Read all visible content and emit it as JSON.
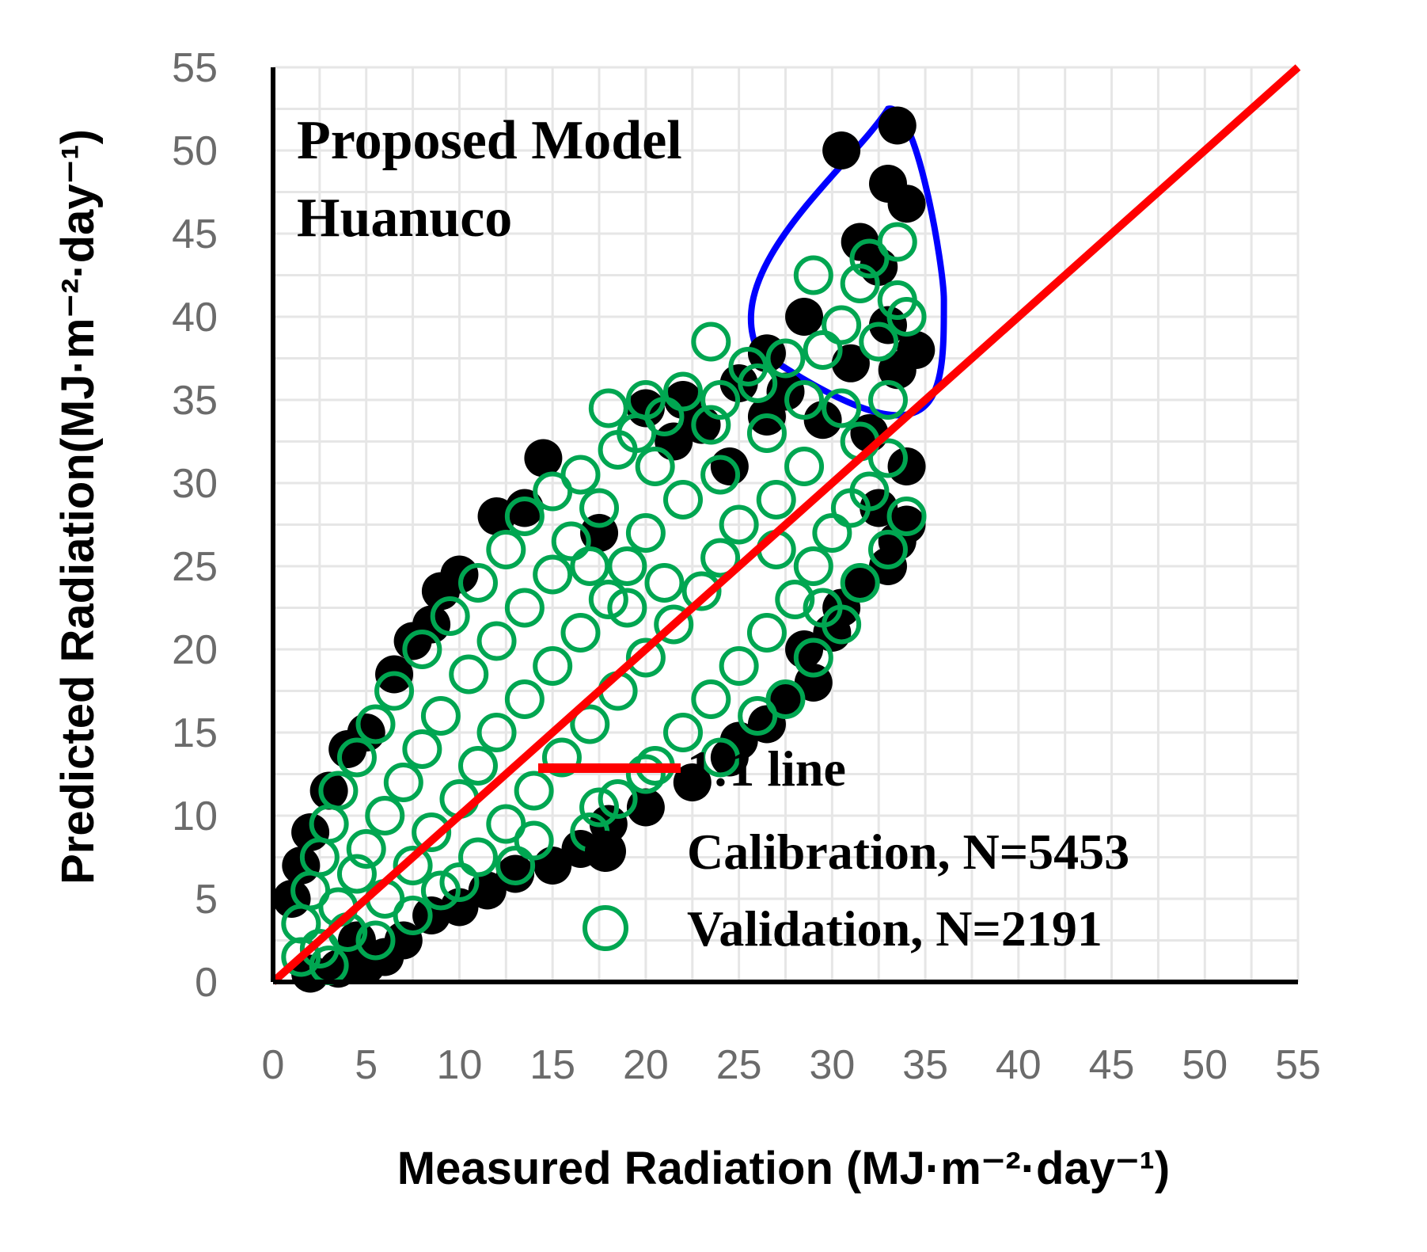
{
  "chart_data": {
    "type": "scatter",
    "title": "Proposed Model Huanuco",
    "title_lines": [
      "Proposed Model",
      "Huanuco"
    ],
    "xlabel": "Measured Radiation (MJ·m⁻²·day⁻¹)",
    "ylabel": "Predicted Radiation(MJ·m⁻²·day⁻¹)",
    "xlim": [
      0,
      55
    ],
    "ylim": [
      0,
      55
    ],
    "xticks": [
      0,
      5,
      10,
      15,
      20,
      25,
      30,
      35,
      40,
      45,
      50,
      55
    ],
    "yticks": [
      0,
      5,
      10,
      15,
      20,
      25,
      30,
      35,
      40,
      45,
      50,
      55
    ],
    "grid": true,
    "legend_position": "bottom-right",
    "series": [
      {
        "name": "1:1 line",
        "type": "line",
        "color": "#ff0000",
        "x": [
          0,
          55
        ],
        "y": [
          0,
          55
        ]
      },
      {
        "name": "Calibration, N=5453",
        "type": "scatter",
        "marker": "filled-circle",
        "color": "#000000",
        "n": 5453,
        "points": [
          [
            33.5,
            51.5
          ],
          [
            30.5,
            50.0
          ],
          [
            33.0,
            48.0
          ],
          [
            34.0,
            46.8
          ],
          [
            31.5,
            44.5
          ],
          [
            32.5,
            43.0
          ],
          [
            28.5,
            40.0
          ],
          [
            33.0,
            39.5
          ],
          [
            34.5,
            38.0
          ],
          [
            26.5,
            37.8
          ],
          [
            31.0,
            37.2
          ],
          [
            33.5,
            36.8
          ],
          [
            25.0,
            36.0
          ],
          [
            27.5,
            35.5
          ],
          [
            22.0,
            35.0
          ],
          [
            20.0,
            34.5
          ],
          [
            26.5,
            34.0
          ],
          [
            29.5,
            33.8
          ],
          [
            23.0,
            33.5
          ],
          [
            32.0,
            33.0
          ],
          [
            21.5,
            32.5
          ],
          [
            14.5,
            31.5
          ],
          [
            34.0,
            31.0
          ],
          [
            24.5,
            31.0
          ],
          [
            13.5,
            28.5
          ],
          [
            12.0,
            28.0
          ],
          [
            34.0,
            27.5
          ],
          [
            17.5,
            27.0
          ],
          [
            33.5,
            26.5
          ],
          [
            10.0,
            24.5
          ],
          [
            9.0,
            23.5
          ],
          [
            33.0,
            25.0
          ],
          [
            31.5,
            24.0
          ],
          [
            8.5,
            21.5
          ],
          [
            7.5,
            20.5
          ],
          [
            30.0,
            21.0
          ],
          [
            6.5,
            18.5
          ],
          [
            29.0,
            18.0
          ],
          [
            27.5,
            17.0
          ],
          [
            5.0,
            15.0
          ],
          [
            4.0,
            14.0
          ],
          [
            26.5,
            15.5
          ],
          [
            3.0,
            11.5
          ],
          [
            18.0,
            9.5
          ],
          [
            16.5,
            8.0
          ],
          [
            2.0,
            9.0
          ],
          [
            1.5,
            7.0
          ],
          [
            11.5,
            5.5
          ],
          [
            10.0,
            4.5
          ],
          [
            1.0,
            5.0
          ],
          [
            7.0,
            2.5
          ],
          [
            6.0,
            1.5
          ],
          [
            5.0,
            1.0
          ],
          [
            2.0,
            0.5
          ],
          [
            3.5,
            0.8
          ],
          [
            4.5,
            2.5
          ],
          [
            8.5,
            4.0
          ],
          [
            13.0,
            6.5
          ],
          [
            15.0,
            7.0
          ],
          [
            20.0,
            10.5
          ],
          [
            22.5,
            12.0
          ],
          [
            24.5,
            13.5
          ],
          [
            25.0,
            14.5
          ],
          [
            28.5,
            20.0
          ],
          [
            30.5,
            22.5
          ],
          [
            32.5,
            28.5
          ]
        ]
      },
      {
        "name": "Validation, N=2191",
        "type": "scatter",
        "marker": "open-circle",
        "color": "#00a651",
        "n": 2191,
        "points": [
          [
            33.5,
            44.5
          ],
          [
            32.0,
            43.5
          ],
          [
            29.0,
            42.5
          ],
          [
            31.5,
            42.0
          ],
          [
            33.5,
            41.0
          ],
          [
            34.0,
            40.0
          ],
          [
            30.5,
            39.5
          ],
          [
            32.5,
            38.5
          ],
          [
            29.5,
            38.0
          ],
          [
            23.5,
            38.5
          ],
          [
            25.5,
            37.0
          ],
          [
            27.5,
            37.5
          ],
          [
            26.0,
            36.0
          ],
          [
            22.0,
            35.5
          ],
          [
            20.0,
            35.0
          ],
          [
            18.0,
            34.5
          ],
          [
            24.0,
            35.0
          ],
          [
            21.0,
            34.0
          ],
          [
            28.5,
            35.0
          ],
          [
            30.5,
            34.5
          ],
          [
            33.0,
            35.0
          ],
          [
            19.5,
            33.0
          ],
          [
            23.5,
            33.5
          ],
          [
            18.5,
            32.0
          ],
          [
            26.5,
            33.0
          ],
          [
            31.5,
            32.5
          ],
          [
            16.5,
            30.5
          ],
          [
            20.5,
            31.0
          ],
          [
            24.0,
            30.5
          ],
          [
            28.5,
            31.0
          ],
          [
            33.0,
            31.5
          ],
          [
            15.0,
            29.5
          ],
          [
            13.5,
            28.0
          ],
          [
            17.5,
            28.5
          ],
          [
            22.0,
            29.0
          ],
          [
            27.0,
            29.0
          ],
          [
            32.0,
            29.5
          ],
          [
            12.5,
            26.0
          ],
          [
            16.0,
            26.5
          ],
          [
            20.0,
            27.0
          ],
          [
            25.0,
            27.5
          ],
          [
            30.0,
            27.0
          ],
          [
            34.0,
            28.0
          ],
          [
            11.0,
            24.0
          ],
          [
            15.0,
            24.5
          ],
          [
            19.0,
            25.0
          ],
          [
            24.0,
            25.5
          ],
          [
            29.0,
            25.0
          ],
          [
            33.0,
            26.0
          ],
          [
            9.5,
            22.0
          ],
          [
            13.5,
            22.5
          ],
          [
            18.0,
            23.0
          ],
          [
            23.0,
            23.5
          ],
          [
            28.0,
            23.0
          ],
          [
            31.5,
            24.0
          ],
          [
            8.0,
            20.0
          ],
          [
            12.0,
            20.5
          ],
          [
            16.5,
            21.0
          ],
          [
            21.5,
            21.5
          ],
          [
            26.5,
            21.0
          ],
          [
            30.5,
            21.5
          ],
          [
            6.5,
            17.5
          ],
          [
            10.5,
            18.5
          ],
          [
            15.0,
            19.0
          ],
          [
            20.0,
            19.5
          ],
          [
            25.0,
            19.0
          ],
          [
            29.0,
            19.5
          ],
          [
            5.5,
            15.5
          ],
          [
            9.0,
            16.0
          ],
          [
            13.5,
            17.0
          ],
          [
            18.5,
            17.5
          ],
          [
            23.5,
            17.0
          ],
          [
            27.5,
            17.0
          ],
          [
            4.5,
            13.5
          ],
          [
            8.0,
            14.0
          ],
          [
            12.0,
            15.0
          ],
          [
            17.0,
            15.5
          ],
          [
            22.0,
            15.0
          ],
          [
            26.0,
            16.0
          ],
          [
            3.5,
            11.5
          ],
          [
            7.0,
            12.0
          ],
          [
            11.0,
            13.0
          ],
          [
            15.5,
            13.5
          ],
          [
            20.5,
            13.0
          ],
          [
            24.0,
            13.5
          ],
          [
            3.0,
            9.5
          ],
          [
            6.0,
            10.0
          ],
          [
            10.0,
            11.0
          ],
          [
            14.0,
            11.5
          ],
          [
            18.5,
            11.0
          ],
          [
            2.5,
            7.5
          ],
          [
            5.0,
            8.0
          ],
          [
            8.5,
            9.0
          ],
          [
            12.5,
            9.5
          ],
          [
            17.5,
            10.5
          ],
          [
            14.0,
            8.5
          ],
          [
            2.0,
            5.5
          ],
          [
            4.5,
            6.5
          ],
          [
            7.5,
            7.0
          ],
          [
            11.0,
            7.5
          ],
          [
            20.0,
            12.5
          ],
          [
            17.0,
            9.0
          ],
          [
            1.5,
            3.5
          ],
          [
            3.5,
            4.5
          ],
          [
            6.0,
            5.0
          ],
          [
            9.0,
            5.5
          ],
          [
            2.5,
            2.0
          ],
          [
            4.0,
            3.0
          ],
          [
            1.5,
            1.5
          ],
          [
            3.0,
            1.0
          ],
          [
            5.5,
            2.5
          ],
          [
            7.5,
            4.0
          ],
          [
            10.0,
            6.0
          ],
          [
            13.0,
            7.0
          ],
          [
            19.0,
            22.5
          ],
          [
            21.0,
            24.0
          ],
          [
            17.0,
            25.0
          ],
          [
            27.0,
            26.0
          ],
          [
            31.0,
            28.5
          ],
          [
            29.5,
            22.5
          ]
        ]
      }
    ],
    "annotations": [
      {
        "type": "ellipse-outline",
        "color": "#0000ff",
        "description_region": [
          22,
          33,
          36,
          53
        ]
      }
    ]
  }
}
